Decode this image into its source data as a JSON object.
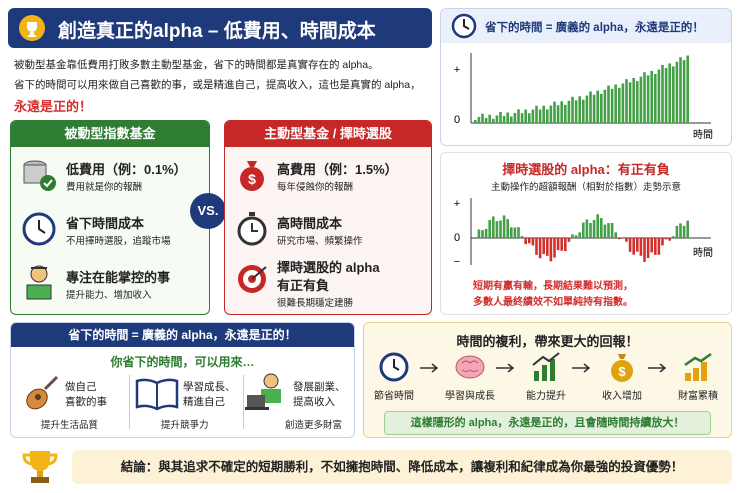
{
  "header": {
    "title": "創造真正的alpha – 低費用、時間成本"
  },
  "intro": [
    "被動型基金靠低費用打敗多數主動型基金，省下的時間都是真實存在的 alpha。",
    "省下的時間可以用來做自己喜歡的事，或是精進自己，提高收入，這也是真實的 alpha，",
    "永遠是正的！"
  ],
  "passive": {
    "title": "被動型指數基金",
    "items": [
      {
        "title": "低費用（例：0.1%）",
        "desc": "費用就是你的報酬"
      },
      {
        "title": "省下時間成本",
        "desc": "不用擇時選股，追蹤市場"
      },
      {
        "title": "專注在能掌控的事",
        "desc": "提升能力、增加收入"
      }
    ]
  },
  "vs": "VS.",
  "active": {
    "title": "主動型基金 / 擇時選股",
    "items": [
      {
        "title": "高費用（例：1.5%）",
        "desc": "每年侵蝕你的報酬"
      },
      {
        "title": "高時間成本",
        "desc": "研究市場、頻繁操作"
      },
      {
        "title": "擇時選股的 alpha",
        "subtitle": "有正有負",
        "desc": "很難長期穩定建勝"
      }
    ]
  },
  "time_chart": {
    "title": "省下的時間 = 廣義的 alpha，永遠是正的！",
    "plus": "+",
    "zero": "0",
    "xlabel": "時間"
  },
  "alpha_chart": {
    "title": "擇時選股的 alpha：有正有負",
    "subtitle": "主動操作的超額報酬（相對於指數）走勢示意",
    "plus": "+",
    "zero": "0",
    "minus": "−",
    "xlabel": "時間",
    "notes": [
      "短期有贏有輸，長期結果難以預測，",
      "多數人最終績效不如單純持有指數。"
    ]
  },
  "time_uses": {
    "title": "省下的時間 = 廣義的 alpha，永遠是正的！",
    "subtitle": "你省下的時間，可以用來…",
    "items": [
      {
        "lines": [
          "做自己",
          "喜歡的事"
        ],
        "caption": "提升生活品質"
      },
      {
        "lines": [
          "學習成長、",
          "精進自己"
        ],
        "caption": "提升競爭力"
      },
      {
        "lines": [
          "發展副業、",
          "提高收入"
        ],
        "caption": "創造更多財富"
      }
    ]
  },
  "compound": {
    "title": "時間的複利，帶來更大的回報！",
    "steps": [
      "節省時間",
      "學習與成長",
      "能力提升",
      "收入增加",
      "財富累積"
    ],
    "banner": "這樣隱形的 alpha，永遠是正的，且會隨時間持續放大！"
  },
  "conclusion": "結論：與其追求不確定的短期勝利，不如擁抱時間、降低成本，讓複利和紀律成為你最強的投資優勢！"
}
